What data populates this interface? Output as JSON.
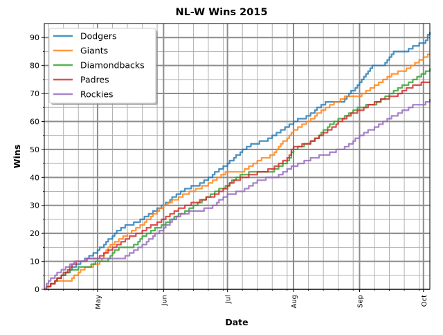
{
  "chart_data": {
    "type": "line",
    "title": "NL-W Wins 2015",
    "xlabel": "Date",
    "ylabel": "Wins",
    "xlim": [
      "2015-04-06",
      "2015-10-04"
    ],
    "ylim": [
      0,
      95
    ],
    "x_ticks": [
      {
        "date": "2015-05-01",
        "label": "May"
      },
      {
        "date": "2015-06-01",
        "label": "Jun"
      },
      {
        "date": "2015-07-01",
        "label": "Jul"
      },
      {
        "date": "2015-08-01",
        "label": "Aug"
      },
      {
        "date": "2015-09-01",
        "label": "Sep"
      },
      {
        "date": "2015-10-01",
        "label": "Oct"
      }
    ],
    "y_ticks": [
      0,
      10,
      20,
      30,
      40,
      50,
      60,
      70,
      80,
      90
    ],
    "grid": true,
    "legend": "upper-left",
    "series": [
      {
        "name": "Dodgers",
        "color": "#1f77b4",
        "points": [
          [
            "2015-04-06",
            0
          ],
          [
            "2015-04-18",
            7
          ],
          [
            "2015-05-01",
            14
          ],
          [
            "2015-05-12",
            22
          ],
          [
            "2015-05-20",
            24
          ],
          [
            "2015-06-01",
            30
          ],
          [
            "2015-06-09",
            35
          ],
          [
            "2015-06-19",
            38
          ],
          [
            "2015-07-01",
            45
          ],
          [
            "2015-07-10",
            51
          ],
          [
            "2015-07-18",
            53
          ],
          [
            "2015-07-25",
            56
          ],
          [
            "2015-08-01",
            60
          ],
          [
            "2015-08-08",
            62
          ],
          [
            "2015-08-16",
            67
          ],
          [
            "2015-08-24",
            67
          ],
          [
            "2015-09-01",
            74
          ],
          [
            "2015-09-07",
            80
          ],
          [
            "2015-09-12",
            80
          ],
          [
            "2015-09-17",
            85
          ],
          [
            "2015-09-22",
            85
          ],
          [
            "2015-09-27",
            87
          ],
          [
            "2015-10-01",
            88
          ],
          [
            "2015-10-04",
            92
          ]
        ]
      },
      {
        "name": "Giants",
        "color": "#ff7f0e",
        "points": [
          [
            "2015-04-06",
            0
          ],
          [
            "2015-04-11",
            3
          ],
          [
            "2015-04-18",
            3
          ],
          [
            "2015-04-23",
            7
          ],
          [
            "2015-05-01",
            9
          ],
          [
            "2015-05-07",
            16
          ],
          [
            "2015-05-20",
            22
          ],
          [
            "2015-06-01",
            30
          ],
          [
            "2015-06-11",
            34
          ],
          [
            "2015-06-23",
            38
          ],
          [
            "2015-07-01",
            42
          ],
          [
            "2015-07-08",
            42
          ],
          [
            "2015-07-15",
            46
          ],
          [
            "2015-07-22",
            48
          ],
          [
            "2015-08-01",
            57
          ],
          [
            "2015-08-06",
            59
          ],
          [
            "2015-08-16",
            65
          ],
          [
            "2015-08-26",
            69
          ],
          [
            "2015-09-01",
            69
          ],
          [
            "2015-09-09",
            73
          ],
          [
            "2015-09-17",
            77
          ],
          [
            "2015-09-24",
            79
          ],
          [
            "2015-10-01",
            83
          ],
          [
            "2015-10-04",
            84
          ]
        ]
      },
      {
        "name": "Diamondbacks",
        "color": "#2ca02c",
        "points": [
          [
            "2015-04-06",
            0
          ],
          [
            "2015-04-11",
            3
          ],
          [
            "2015-04-18",
            7
          ],
          [
            "2015-04-26",
            8
          ],
          [
            "2015-05-01",
            10
          ],
          [
            "2015-05-05",
            10
          ],
          [
            "2015-05-08",
            13
          ],
          [
            "2015-05-12",
            15
          ],
          [
            "2015-05-17",
            15
          ],
          [
            "2015-05-24",
            20
          ],
          [
            "2015-06-01",
            23
          ],
          [
            "2015-06-09",
            27
          ],
          [
            "2015-06-16",
            30
          ],
          [
            "2015-06-23",
            34
          ],
          [
            "2015-07-01",
            37
          ],
          [
            "2015-07-05",
            40
          ],
          [
            "2015-07-12",
            42
          ],
          [
            "2015-07-22",
            42
          ],
          [
            "2015-07-29",
            46
          ],
          [
            "2015-08-01",
            50
          ],
          [
            "2015-08-10",
            53
          ],
          [
            "2015-08-20",
            60
          ],
          [
            "2015-08-26",
            62
          ],
          [
            "2015-09-01",
            65
          ],
          [
            "2015-09-07",
            66
          ],
          [
            "2015-09-14",
            69
          ],
          [
            "2015-09-22",
            73
          ],
          [
            "2015-10-01",
            77
          ],
          [
            "2015-10-04",
            79
          ]
        ]
      },
      {
        "name": "Padres",
        "color": "#d62728",
        "points": [
          [
            "2015-04-06",
            0
          ],
          [
            "2015-04-08",
            1
          ],
          [
            "2015-04-14",
            5
          ],
          [
            "2015-04-21",
            10
          ],
          [
            "2015-05-01",
            11
          ],
          [
            "2015-05-07",
            14
          ],
          [
            "2015-05-14",
            18
          ],
          [
            "2015-05-20",
            20
          ],
          [
            "2015-06-01",
            25
          ],
          [
            "2015-06-09",
            29
          ],
          [
            "2015-06-19",
            32
          ],
          [
            "2015-06-26",
            34
          ],
          [
            "2015-07-01",
            37
          ],
          [
            "2015-07-05",
            39
          ],
          [
            "2015-07-12",
            41
          ],
          [
            "2015-07-22",
            43
          ],
          [
            "2015-07-29",
            47
          ],
          [
            "2015-08-01",
            51
          ],
          [
            "2015-08-08",
            52
          ],
          [
            "2015-08-16",
            56
          ],
          [
            "2015-08-26",
            62
          ],
          [
            "2015-09-01",
            64
          ],
          [
            "2015-09-09",
            67
          ],
          [
            "2015-09-17",
            69
          ],
          [
            "2015-09-24",
            72
          ],
          [
            "2015-10-01",
            74
          ],
          [
            "2015-10-04",
            74
          ]
        ]
      },
      {
        "name": "Rockies",
        "color": "#9467bd",
        "points": [
          [
            "2015-04-06",
            0
          ],
          [
            "2015-04-08",
            3
          ],
          [
            "2015-04-14",
            7
          ],
          [
            "2015-04-21",
            10
          ],
          [
            "2015-05-01",
            11
          ],
          [
            "2015-05-12",
            11
          ],
          [
            "2015-05-17",
            13
          ],
          [
            "2015-05-24",
            17
          ],
          [
            "2015-06-01",
            22
          ],
          [
            "2015-06-09",
            27
          ],
          [
            "2015-06-23",
            29
          ],
          [
            "2015-07-01",
            34
          ],
          [
            "2015-07-08",
            35
          ],
          [
            "2015-07-15",
            39
          ],
          [
            "2015-07-23",
            40
          ],
          [
            "2015-08-01",
            44
          ],
          [
            "2015-08-10",
            47
          ],
          [
            "2015-08-16",
            48
          ],
          [
            "2015-08-26",
            51
          ],
          [
            "2015-09-01",
            55
          ],
          [
            "2015-09-09",
            58
          ],
          [
            "2015-09-17",
            62
          ],
          [
            "2015-09-27",
            66
          ],
          [
            "2015-10-01",
            66
          ],
          [
            "2015-10-04",
            68
          ]
        ]
      }
    ]
  }
}
